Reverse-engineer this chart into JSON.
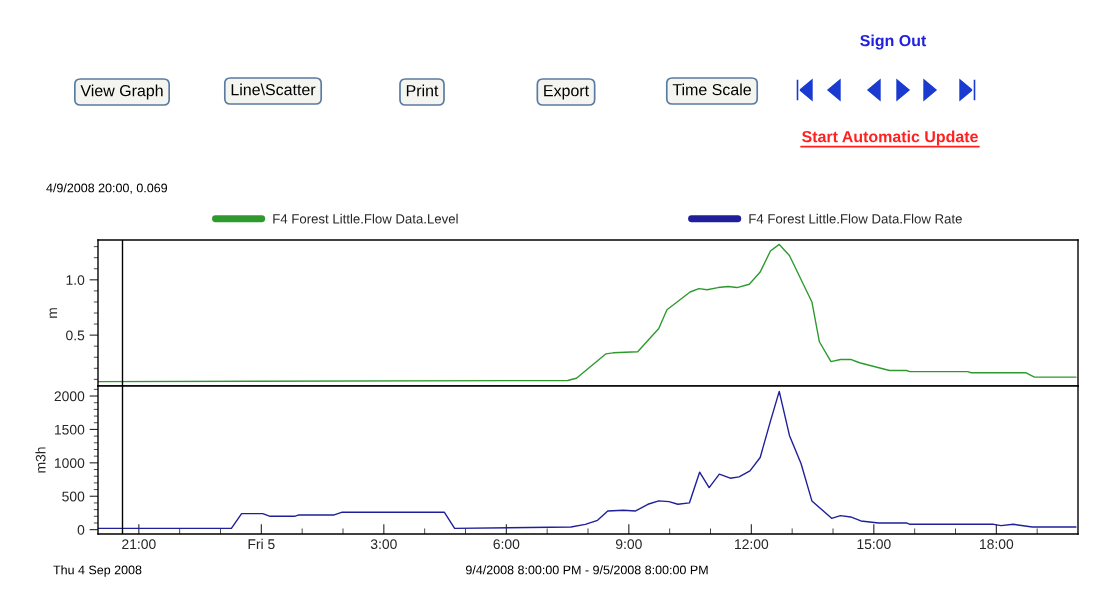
{
  "chart_data": [
    {
      "type": "line",
      "ylabel": "m",
      "xlim": [
        "2008-09-04T20:00",
        "2008-09-05T20:00"
      ],
      "ylim": [
        0.04,
        1.36
      ],
      "yticks": [
        {
          "value": 0.1,
          "label": null
        },
        {
          "value": 0.2,
          "label": null
        },
        {
          "value": 0.3,
          "label": null
        },
        {
          "value": 0.4,
          "label": null
        },
        {
          "value": 0.5,
          "label": "0.5"
        },
        {
          "value": 0.6,
          "label": null
        },
        {
          "value": 0.7,
          "label": null
        },
        {
          "value": 0.8,
          "label": null
        },
        {
          "value": 0.9,
          "label": null
        },
        {
          "value": 1.0,
          "label": "1.0"
        },
        {
          "value": 1.1,
          "label": null
        },
        {
          "value": 1.2,
          "label": null
        },
        {
          "value": 1.3,
          "label": null
        }
      ],
      "tick_labels": "y",
      "legend": "top",
      "grid": false,
      "ref_lines": [
        {
          "axis": "x",
          "value": "2008-09-04T20:36",
          "color": "#000000"
        }
      ],
      "annotations": [
        "View Graph",
        "Line\\Scatter",
        "Print",
        "Export",
        "Time Scale",
        "Sign Out",
        "Start Automatic Update",
        "4/9/2008 20:00, 0.069"
      ],
      "series": [
        {
          "name": "F4 Forest Little.Flow Data.Level",
          "color": "#2e9a2e",
          "x": [
            "2008-09-04T20:00",
            "2008-09-05T07:30",
            "2008-09-05T07:43",
            "2008-09-05T08:26",
            "2008-09-05T08:37",
            "2008-09-05T09:13",
            "2008-09-05T09:44",
            "2008-09-05T09:56",
            "2008-09-05T10:09",
            "2008-09-05T10:30",
            "2008-09-05T10:43",
            "2008-09-05T10:55",
            "2008-09-05T11:11",
            "2008-09-05T11:26",
            "2008-09-05T11:39",
            "2008-09-05T11:57",
            "2008-09-05T12:13",
            "2008-09-05T12:28",
            "2008-09-05T12:41",
            "2008-09-05T12:56",
            "2008-09-05T13:29",
            "2008-09-05T13:40",
            "2008-09-05T13:57",
            "2008-09-05T14:11",
            "2008-09-05T14:26",
            "2008-09-05T14:39",
            "2008-09-05T15:23",
            "2008-09-05T15:48",
            "2008-09-05T15:53",
            "2008-09-05T17:18",
            "2008-09-05T17:23",
            "2008-09-05T18:43",
            "2008-09-05T18:56",
            "2008-09-05T19:57"
          ],
          "values": [
            0.08,
            0.09,
            0.11,
            0.33,
            0.34,
            0.35,
            0.56,
            0.73,
            0.79,
            0.89,
            0.92,
            0.91,
            0.93,
            0.94,
            0.93,
            0.96,
            1.07,
            1.26,
            1.32,
            1.22,
            0.8,
            0.44,
            0.26,
            0.28,
            0.28,
            0.25,
            0.18,
            0.18,
            0.17,
            0.17,
            0.16,
            0.16,
            0.12,
            0.12
          ]
        }
      ]
    },
    {
      "type": "line",
      "ylabel": "m3h",
      "xlim": [
        "2008-09-04T20:00",
        "2008-09-05T20:00"
      ],
      "ylim": [
        -65,
        2150
      ],
      "xticks": [
        {
          "value": "2008-09-04T21:00",
          "label": "21:00"
        },
        {
          "value": "2008-09-04T22:00",
          "label": null
        },
        {
          "value": "2008-09-04T23:00",
          "label": null
        },
        {
          "value": "2008-09-05T00:00",
          "label": "Fri 5"
        },
        {
          "value": "2008-09-05T01:00",
          "label": null
        },
        {
          "value": "2008-09-05T02:00",
          "label": null
        },
        {
          "value": "2008-09-05T03:00",
          "label": "3:00"
        },
        {
          "value": "2008-09-05T04:00",
          "label": null
        },
        {
          "value": "2008-09-05T05:00",
          "label": null
        },
        {
          "value": "2008-09-05T06:00",
          "label": "6:00"
        },
        {
          "value": "2008-09-05T07:00",
          "label": null
        },
        {
          "value": "2008-09-05T08:00",
          "label": null
        },
        {
          "value": "2008-09-05T09:00",
          "label": "9:00"
        },
        {
          "value": "2008-09-05T10:00",
          "label": null
        },
        {
          "value": "2008-09-05T11:00",
          "label": null
        },
        {
          "value": "2008-09-05T12:00",
          "label": "12:00"
        },
        {
          "value": "2008-09-05T13:00",
          "label": null
        },
        {
          "value": "2008-09-05T14:00",
          "label": null
        },
        {
          "value": "2008-09-05T15:00",
          "label": "15:00"
        },
        {
          "value": "2008-09-05T16:00",
          "label": null
        },
        {
          "value": "2008-09-05T17:00",
          "label": null
        },
        {
          "value": "2008-09-05T18:00",
          "label": "18:00"
        },
        {
          "value": "2008-09-05T19:00",
          "label": null
        }
      ],
      "yticks": [
        0,
        {
          "value": 100,
          "label": null
        },
        {
          "value": 200,
          "label": null
        },
        {
          "value": 300,
          "label": null
        },
        {
          "value": 400,
          "label": null
        },
        500,
        {
          "value": 600,
          "label": null
        },
        {
          "value": 700,
          "label": null
        },
        {
          "value": 800,
          "label": null
        },
        {
          "value": 900,
          "label": null
        },
        1000,
        {
          "value": 1100,
          "label": null
        },
        {
          "value": 1200,
          "label": null
        },
        {
          "value": 1300,
          "label": null
        },
        {
          "value": 1400,
          "label": null
        },
        1500,
        {
          "value": 1600,
          "label": null
        },
        {
          "value": 1700,
          "label": null
        },
        {
          "value": 1800,
          "label": null
        },
        {
          "value": 1900,
          "label": null
        },
        2000,
        {
          "value": 2100,
          "label": null
        }
      ],
      "legend": "top",
      "grid": false,
      "ref_lines": [
        {
          "axis": "x",
          "value": "2008-09-04T20:36",
          "color": "#000000"
        }
      ],
      "annotations": [
        "Thu 4 Sep 2008",
        "9/4/2008 8:00:00 PM - 9/5/2008 8:00:00 PM"
      ],
      "series": [
        {
          "name": "F4 Forest Little.Flow Data.Flow Rate",
          "color": "#1f1f9a",
          "x": [
            "2008-09-04T20:00",
            "2008-09-04T23:16",
            "2008-09-04T23:31",
            "2008-09-05T00:02",
            "2008-09-05T00:13",
            "2008-09-05T00:49",
            "2008-09-05T00:55",
            "2008-09-05T01:47",
            "2008-09-05T01:58",
            "2008-09-05T04:29",
            "2008-09-05T04:44",
            "2008-09-05T07:35",
            "2008-09-05T07:56",
            "2008-09-05T08:14",
            "2008-09-05T08:29",
            "2008-09-05T08:52",
            "2008-09-05T09:10",
            "2008-09-05T09:28",
            "2008-09-05T09:44",
            "2008-09-05T09:59",
            "2008-09-05T10:12",
            "2008-09-05T10:29",
            "2008-09-05T10:44",
            "2008-09-05T10:58",
            "2008-09-05T11:13",
            "2008-09-05T11:29",
            "2008-09-05T11:42",
            "2008-09-05T11:58",
            "2008-09-05T12:13",
            "2008-09-05T12:28",
            "2008-09-05T12:41",
            "2008-09-05T12:56",
            "2008-09-05T13:13",
            "2008-09-05T13:29",
            "2008-09-05T13:58",
            "2008-09-05T14:11",
            "2008-09-05T14:26",
            "2008-09-05T14:41",
            "2008-09-05T15:07",
            "2008-09-05T15:48",
            "2008-09-05T15:53",
            "2008-09-05T17:56",
            "2008-09-05T18:07",
            "2008-09-05T18:25",
            "2008-09-05T18:53",
            "2008-09-05T19:57"
          ],
          "values": [
            20,
            20,
            240,
            240,
            200,
            200,
            220,
            220,
            260,
            260,
            20,
            40,
            80,
            140,
            280,
            290,
            280,
            380,
            430,
            420,
            380,
            400,
            860,
            630,
            830,
            770,
            790,
            880,
            1080,
            1620,
            2070,
            1410,
            990,
            430,
            170,
            210,
            190,
            130,
            100,
            100,
            80,
            80,
            60,
            80,
            40,
            40
          ]
        }
      ]
    }
  ]
}
